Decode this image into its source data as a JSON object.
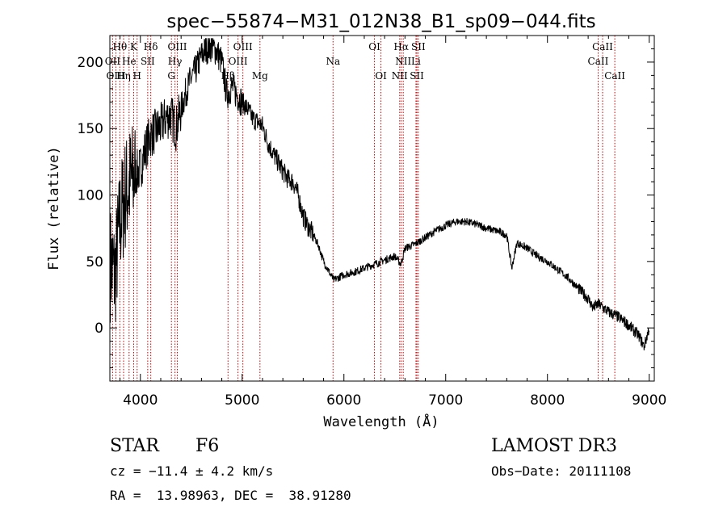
{
  "chart_data": {
    "type": "line",
    "title": "spec−55874−M31_012N38_B1_sp09−044.fits",
    "xlabel": "Wavelength (Å)",
    "ylabel": "Flux (relative)",
    "xlim": [
      3700,
      9050
    ],
    "ylim": [
      -40,
      220
    ],
    "xticks": [
      4000,
      5000,
      6000,
      7000,
      8000,
      9000
    ],
    "yticks": [
      0,
      50,
      100,
      150,
      200
    ],
    "spectrum_anchors": [
      [
        3700,
        50
      ],
      [
        3750,
        40
      ],
      [
        3800,
        80
      ],
      [
        3850,
        100
      ],
      [
        3900,
        110
      ],
      [
        3950,
        115
      ],
      [
        4000,
        120
      ],
      [
        4050,
        135
      ],
      [
        4100,
        145
      ],
      [
        4150,
        148
      ],
      [
        4200,
        152
      ],
      [
        4250,
        158
      ],
      [
        4300,
        160
      ],
      [
        4350,
        150
      ],
      [
        4400,
        165
      ],
      [
        4450,
        178
      ],
      [
        4500,
        188
      ],
      [
        4550,
        195
      ],
      [
        4600,
        205
      ],
      [
        4650,
        210
      ],
      [
        4700,
        212
      ],
      [
        4750,
        208
      ],
      [
        4800,
        200
      ],
      [
        4850,
        175
      ],
      [
        4900,
        182
      ],
      [
        4950,
        175
      ],
      [
        5000,
        170
      ],
      [
        5050,
        165
      ],
      [
        5100,
        158
      ],
      [
        5150,
        155
      ],
      [
        5200,
        152
      ],
      [
        5250,
        140
      ],
      [
        5300,
        132
      ],
      [
        5350,
        125
      ],
      [
        5400,
        118
      ],
      [
        5450,
        112
      ],
      [
        5500,
        110
      ],
      [
        5550,
        100
      ],
      [
        5600,
        84
      ],
      [
        5650,
        76
      ],
      [
        5700,
        70
      ],
      [
        5750,
        62
      ],
      [
        5800,
        50
      ],
      [
        5850,
        43
      ],
      [
        5900,
        36
      ],
      [
        5950,
        38
      ],
      [
        6000,
        40
      ],
      [
        6100,
        42
      ],
      [
        6200,
        45
      ],
      [
        6300,
        48
      ],
      [
        6400,
        51
      ],
      [
        6500,
        54
      ],
      [
        6560,
        48
      ],
      [
        6600,
        60
      ],
      [
        6700,
        63
      ],
      [
        6800,
        68
      ],
      [
        6900,
        73
      ],
      [
        7000,
        77
      ],
      [
        7100,
        80
      ],
      [
        7200,
        80
      ],
      [
        7300,
        78
      ],
      [
        7400,
        75
      ],
      [
        7500,
        73
      ],
      [
        7600,
        70
      ],
      [
        7650,
        45
      ],
      [
        7700,
        64
      ],
      [
        7800,
        60
      ],
      [
        7900,
        54
      ],
      [
        8000,
        50
      ],
      [
        8100,
        44
      ],
      [
        8200,
        38
      ],
      [
        8300,
        30
      ],
      [
        8400,
        22
      ],
      [
        8450,
        15
      ],
      [
        8500,
        18
      ],
      [
        8600,
        12
      ],
      [
        8700,
        8
      ],
      [
        8800,
        2
      ],
      [
        8900,
        -6
      ],
      [
        8950,
        -14
      ],
      [
        9000,
        0
      ]
    ],
    "spectral_lines": [
      {
        "name": "Hθ",
        "wavelength": 3798,
        "row": 0
      },
      {
        "name": "K",
        "wavelength": 3934,
        "row": 0
      },
      {
        "name": "Hδ",
        "wavelength": 4102,
        "row": 0
      },
      {
        "name": "OIII",
        "wavelength": 4363,
        "row": 0
      },
      {
        "name": "OIII",
        "wavelength": 5007,
        "row": 0
      },
      {
        "name": "OI",
        "wavelength": 6300,
        "row": 0
      },
      {
        "name": "Hα",
        "wavelength": 6563,
        "row": 0
      },
      {
        "name": "SII",
        "wavelength": 6731,
        "row": 0
      },
      {
        "name": "CaII",
        "wavelength": 8542,
        "row": 0
      },
      {
        "name": "OII",
        "wavelength": 3727,
        "row": 1
      },
      {
        "name": "He",
        "wavelength": 3889,
        "row": 1
      },
      {
        "name": "SII",
        "wavelength": 4072,
        "row": 1
      },
      {
        "name": "Hγ",
        "wavelength": 4340,
        "row": 1
      },
      {
        "name": "OIII",
        "wavelength": 4959,
        "row": 1
      },
      {
        "name": "Na",
        "wavelength": 5893,
        "row": 1
      },
      {
        "name": "NII",
        "wavelength": 6583,
        "row": 1
      },
      {
        "name": "Li",
        "wavelength": 6708,
        "row": 1
      },
      {
        "name": "CaII",
        "wavelength": 8498,
        "row": 1
      },
      {
        "name": "OIII",
        "wavelength": 3760,
        "row": 2
      },
      {
        "name": "Hη",
        "wavelength": 3835,
        "row": 2
      },
      {
        "name": "H",
        "wavelength": 3968,
        "row": 2
      },
      {
        "name": "G",
        "wavelength": 4305,
        "row": 2
      },
      {
        "name": "Hβ",
        "wavelength": 4861,
        "row": 2
      },
      {
        "name": "Mg",
        "wavelength": 5175,
        "row": 2
      },
      {
        "name": "OI",
        "wavelength": 6364,
        "row": 2
      },
      {
        "name": "NII",
        "wavelength": 6548,
        "row": 2
      },
      {
        "name": "SII",
        "wavelength": 6717,
        "row": 2
      },
      {
        "name": "CaII",
        "wavelength": 8662,
        "row": 2
      }
    ]
  },
  "footer": {
    "class_label": "STAR",
    "subclass": "F6",
    "survey": "LAMOST DR3",
    "cz": "cz = −11.4 ± 4.2 km/s",
    "obs_date": "Obs−Date: 20111108",
    "coords": "RA =  13.98963, DEC =  38.91280"
  },
  "colors": {
    "axis": "#000000",
    "spectrum": "#000000",
    "lines": "#cc0000"
  }
}
